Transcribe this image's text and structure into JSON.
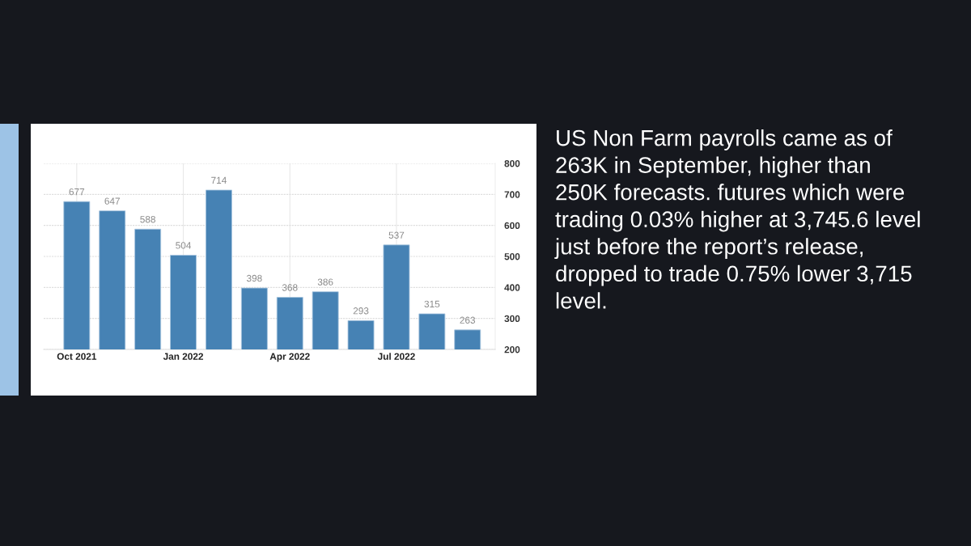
{
  "chart_data": {
    "type": "bar",
    "categories": [
      "Oct 2021",
      null,
      null,
      "Jan 2022",
      null,
      null,
      "Apr 2022",
      null,
      null,
      "Jul 2022",
      null,
      null
    ],
    "values": [
      677,
      647,
      588,
      504,
      714,
      398,
      368,
      386,
      293,
      537,
      315,
      263
    ],
    "color": "#4682b4",
    "ylim": [
      200,
      800
    ],
    "yticks": [
      200,
      300,
      400,
      500,
      600,
      700,
      800
    ],
    "grid": true,
    "data_labels": true,
    "annotations": [
      "US Non Farm payrolls came as of 263K in September, higher than 250K forecasts. futures which were trading 0.03% higher at 3,745.6 level just before the report’s release, dropped to trade 0.75% lower 3,715 level."
    ]
  }
}
